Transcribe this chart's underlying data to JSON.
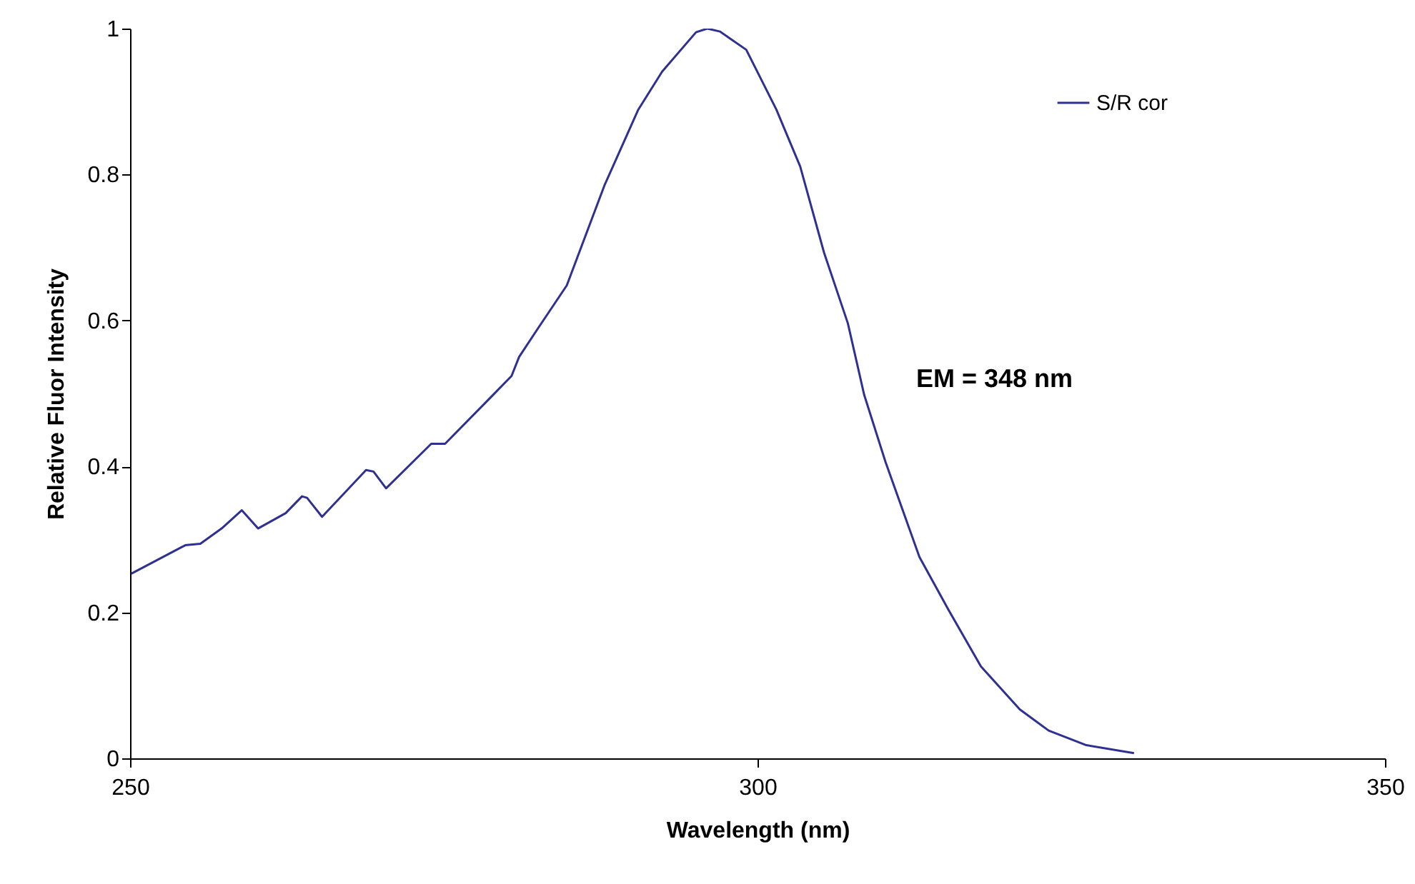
{
  "chart_data": {
    "type": "line",
    "xlabel": "Wavelength (nm)",
    "ylabel": "Relative Fluor Intensity",
    "xlim": [
      250,
      350
    ],
    "xticks": [
      250,
      300,
      350
    ],
    "ylim": [
      0,
      1
    ],
    "yticks": [
      0,
      0.2,
      0.4,
      0.6,
      0.8,
      1
    ],
    "grid": false,
    "legend": "top right",
    "marker": "none",
    "line_style": "solid",
    "annotations": [
      "EM = 348 nm"
    ],
    "series": [
      {
        "name": "S/R cor",
        "color": "#2e3192",
        "x": [
          250.1,
          254.4,
          255.6,
          257.3,
          258.9,
          260.2,
          262.4,
          263.7,
          264.1,
          265.3,
          268.8,
          269.4,
          270.4,
          274.0,
          275.1,
          278.7,
          280.4,
          281.0,
          282.5,
          284.8,
          287.8,
          290.5,
          292.4,
          295.1,
          296.0,
          297.0,
          299.1,
          301.5,
          303.4,
          305.3,
          307.2,
          308.5,
          310.2,
          312.9,
          315.2,
          317.8,
          320.9,
          323.2,
          326.2,
          330.0
        ],
        "values": [
          0.253,
          0.292,
          0.294,
          0.315,
          0.34,
          0.315,
          0.336,
          0.359,
          0.357,
          0.331,
          0.395,
          0.393,
          0.37,
          0.431,
          0.431,
          0.494,
          0.524,
          0.55,
          0.589,
          0.648,
          0.785,
          0.889,
          0.941,
          0.995,
          1.0,
          0.996,
          0.971,
          0.889,
          0.811,
          0.693,
          0.596,
          0.498,
          0.406,
          0.276,
          0.204,
          0.126,
          0.067,
          0.038,
          0.018,
          0.007
        ]
      }
    ]
  }
}
